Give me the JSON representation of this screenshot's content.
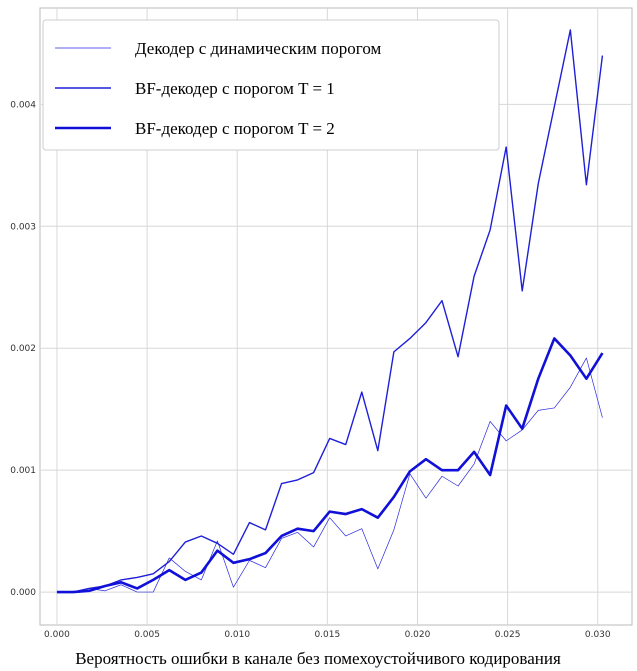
{
  "chart_data": {
    "type": "line",
    "xlabel": "Вероятность ошибки в канале без помехоустойчивого кодирования",
    "x": [
      0,
      0.00089,
      0.00178,
      0.00267,
      0.00356,
      0.00445,
      0.00534,
      0.00623,
      0.00712,
      0.00801,
      0.0089,
      0.00979,
      0.01068,
      0.01157,
      0.01246,
      0.01335,
      0.01424,
      0.01513,
      0.01602,
      0.01691,
      0.0178,
      0.01869,
      0.01958,
      0.02047,
      0.02136,
      0.02225,
      0.02314,
      0.02403,
      0.02492,
      0.02581,
      0.0267,
      0.02759,
      0.02848,
      0.02937,
      0.03026
    ],
    "series": [
      {
        "name": "Декодер с динамическим порогом",
        "color": "#2a2ae0",
        "width": 0.7,
        "values": [
          0,
          0,
          3e-05,
          1e-05,
          6e-05,
          0,
          0,
          0.00028,
          0.00017,
          0.0001,
          0.00042,
          4e-05,
          0.00026,
          0.0002,
          0.00044,
          0.00049,
          0.00037,
          0.00061,
          0.00046,
          0.00052,
          0.00019,
          0.00051,
          0.00097,
          0.00077,
          0.00095,
          0.00087,
          0.00105,
          0.0014,
          0.00124,
          0.00133,
          0.00149,
          0.00151,
          0.00168,
          0.00192,
          0.00143
        ]
      },
      {
        "name": "BF-декодер с порогом T = 1",
        "color": "#1f1fd8",
        "width": 1.4,
        "values": [
          0,
          0,
          3e-05,
          5e-05,
          0.0001,
          0.00012,
          0.00015,
          0.00025,
          0.00041,
          0.00046,
          0.0004,
          0.00031,
          0.00057,
          0.00051,
          0.00089,
          0.00092,
          0.00098,
          0.00126,
          0.00121,
          0.00164,
          0.00116,
          0.00197,
          0.00208,
          0.00221,
          0.00239,
          0.00193,
          0.00259,
          0.00297,
          0.00365,
          0.00247,
          0.00335,
          0.00398,
          0.00461,
          0.00334,
          0.0044
        ]
      },
      {
        "name": "BF-декодер с порогом T = 2",
        "color": "#1010d8",
        "width": 2.6,
        "values": [
          0,
          0,
          1e-05,
          5e-05,
          8e-05,
          3e-05,
          0.0001,
          0.00018,
          0.0001,
          0.00016,
          0.00034,
          0.00024,
          0.00027,
          0.00032,
          0.00046,
          0.00052,
          0.0005,
          0.00066,
          0.00064,
          0.00068,
          0.00061,
          0.00078,
          0.00099,
          0.00109,
          0.001,
          0.001,
          0.00115,
          0.00096,
          0.00153,
          0.00134,
          0.00175,
          0.00208,
          0.00194,
          0.00175,
          0.00196
        ]
      }
    ],
    "xlim": [
      -0.00094,
      0.0319
    ],
    "ylim": [
      -0.00027,
      0.00479
    ],
    "xticks": [
      {
        "value": 0,
        "label": "0.000"
      },
      {
        "value": 0.005,
        "label": "0.005"
      },
      {
        "value": 0.01,
        "label": "0.010"
      },
      {
        "value": 0.015,
        "label": "0.015"
      },
      {
        "value": 0.02,
        "label": "0.020"
      },
      {
        "value": 0.025,
        "label": "0.025"
      },
      {
        "value": 0.03,
        "label": "0.030"
      }
    ],
    "yticks": [
      {
        "value": 0,
        "label": "0.000"
      },
      {
        "value": 0.001,
        "label": "0.001"
      },
      {
        "value": 0.002,
        "label": "0.002"
      },
      {
        "value": 0.003,
        "label": "0.003"
      },
      {
        "value": 0.004,
        "label": "0.004"
      }
    ],
    "grid": true,
    "legend": "upper left"
  }
}
